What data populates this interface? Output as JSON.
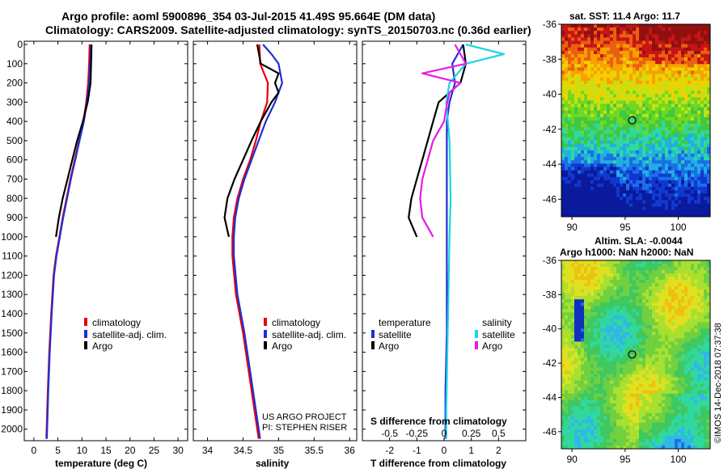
{
  "header": {
    "line1": "Argo profile: aoml 5900896_354 03-Jul-2015 41.49S 95.664E (DM data)",
    "line2": "Climatology: CARS2009. Satellite-adjusted climatology: synTS_20150703.nc (0.36d earlier)"
  },
  "colors": {
    "climatology": "#e8000b",
    "satellite": "#1f2fd6",
    "argo": "#000000",
    "sat_salinity": "#16d6e8",
    "argo_salinity": "#e81ae8",
    "ocean_low": "#0a1a9c",
    "ocean_high": "#c81414"
  },
  "depth_axis": {
    "ticks": [
      "0",
      "100",
      "200",
      "300",
      "400",
      "500",
      "600",
      "700",
      "800",
      "900",
      "1000",
      "1100",
      "1200",
      "1300",
      "1400",
      "1500",
      "1600",
      "1700",
      "1800",
      "1900",
      "2000"
    ],
    "ylim": [
      0,
      2060
    ]
  },
  "chart_data": [
    {
      "type": "line",
      "id": "temperature",
      "xlabel": "temperature (deg C)",
      "xlim": [
        -2,
        32
      ],
      "xticks": [
        "0",
        "5",
        "10",
        "15",
        "20",
        "25",
        "30"
      ],
      "legend": [
        "climatology",
        "satellite-adj. clim.",
        "Argo"
      ],
      "series": [
        {
          "name": "climatology",
          "depth": [
            0,
            100,
            200,
            300,
            400,
            500,
            600,
            700,
            800,
            900,
            1000,
            1100,
            1200,
            1400,
            1600,
            1800,
            2050
          ],
          "values": [
            11.6,
            11.5,
            11.3,
            10.9,
            10.3,
            9.4,
            8.5,
            7.6,
            6.8,
            6.0,
            5.3,
            4.6,
            4.1,
            3.6,
            3.2,
            2.9,
            2.6
          ]
        },
        {
          "name": "satellite-adj. clim.",
          "depth": [
            0,
            100,
            200,
            300,
            400,
            500,
            600,
            700,
            800,
            900,
            1000,
            1100,
            1200,
            1400,
            1600,
            1800,
            2050
          ],
          "values": [
            11.9,
            11.7,
            11.5,
            11.0,
            10.4,
            9.5,
            8.6,
            7.7,
            6.9,
            6.1,
            5.4,
            4.7,
            4.2,
            3.7,
            3.3,
            3.0,
            2.7
          ]
        },
        {
          "name": "Argo",
          "depth": [
            0,
            100,
            200,
            300,
            400,
            500,
            600,
            700,
            800,
            900,
            1000
          ],
          "values": [
            12.0,
            11.9,
            11.8,
            11.2,
            10.2,
            9.0,
            8.0,
            7.0,
            6.0,
            5.2,
            4.6
          ]
        }
      ]
    },
    {
      "type": "line",
      "id": "salinity",
      "xlabel": "salinity",
      "xlim": [
        33.8,
        36.1
      ],
      "xticks": [
        "34",
        "34.5",
        "35",
        "35.5",
        "36"
      ],
      "legend": [
        "climatology",
        "satellite-adj. clim.",
        "Argo"
      ],
      "series": [
        {
          "name": "climatology",
          "depth": [
            0,
            100,
            200,
            300,
            400,
            500,
            600,
            700,
            800,
            900,
            1000,
            1100,
            1300,
            1500,
            1700,
            1900,
            2050
          ],
          "values": [
            34.73,
            34.74,
            34.85,
            34.84,
            34.75,
            34.68,
            34.6,
            34.5,
            34.42,
            34.37,
            34.35,
            34.35,
            34.4,
            34.5,
            34.58,
            34.66,
            34.72
          ]
        },
        {
          "name": "satellite-adj. clim.",
          "depth": [
            0,
            50,
            100,
            200,
            300,
            400,
            500,
            600,
            700,
            800,
            900,
            1000,
            1100,
            1300,
            1500,
            1700,
            1900,
            2050
          ],
          "values": [
            34.78,
            34.9,
            35.0,
            35.05,
            34.95,
            34.82,
            34.72,
            34.62,
            34.52,
            34.44,
            34.39,
            34.37,
            34.37,
            34.42,
            34.52,
            34.6,
            34.68,
            34.74
          ]
        },
        {
          "name": "Argo",
          "depth": [
            0,
            100,
            150,
            200,
            250,
            300,
            400,
            500,
            600,
            700,
            800,
            900,
            1000
          ],
          "values": [
            34.7,
            34.75,
            35.0,
            34.95,
            35.0,
            34.9,
            34.75,
            34.62,
            34.5,
            34.38,
            34.28,
            34.24,
            34.3
          ]
        }
      ],
      "credit": [
        "US ARGO PROJECT",
        "PI: STEPHEN RISER"
      ]
    },
    {
      "type": "line",
      "id": "differences",
      "xlabel": "T difference from climatology",
      "xlim": [
        -3,
        3
      ],
      "xticks": [
        "-2",
        "-1",
        "0",
        "1",
        "2"
      ],
      "top_label": "S difference from climatology",
      "top_ticks": [
        "-0.5",
        "-0.25",
        "0",
        "0.25",
        "0.5"
      ],
      "legend_left_title": "temperature",
      "legend_right_title": "salinity",
      "legend_left": [
        "satellite",
        "Argo"
      ],
      "legend_right": [
        "satellite",
        "Argo"
      ],
      "series": [
        {
          "name": "T satellite",
          "depth": [
            0,
            100,
            200,
            300,
            400,
            600,
            800,
            1000,
            1200,
            1500,
            1800,
            2050
          ],
          "values": [
            0.7,
            0.3,
            0.4,
            0.2,
            0.1,
            0.1,
            0.1,
            0.1,
            0.1,
            0.1,
            0.05,
            0.05
          ]
        },
        {
          "name": "T Argo",
          "depth": [
            0,
            100,
            200,
            300,
            400,
            500,
            600,
            700,
            800,
            900,
            1000
          ],
          "values": [
            0.7,
            0.8,
            0.6,
            -0.2,
            -0.4,
            -0.6,
            -0.8,
            -1.0,
            -1.2,
            -1.3,
            -1.0
          ]
        },
        {
          "name": "S satellite",
          "depth": [
            0,
            50,
            100,
            200,
            300,
            500,
            800,
            1000,
            1300,
            1600,
            1900,
            2050
          ],
          "values": [
            0.2,
            0.55,
            0.2,
            0.05,
            0.02,
            0.05,
            0.06,
            0.05,
            0.04,
            0.03,
            0.02,
            0.02
          ]
        },
        {
          "name": "S Argo",
          "depth": [
            0,
            100,
            150,
            200,
            250,
            300,
            400,
            500,
            600,
            700,
            800,
            900,
            1000
          ],
          "values": [
            0.1,
            0.2,
            -0.2,
            0.15,
            0.05,
            0.03,
            0.0,
            -0.1,
            -0.15,
            -0.2,
            -0.22,
            -0.2,
            -0.1
          ]
        }
      ]
    },
    {
      "type": "heatmap",
      "id": "sst_map",
      "title": "sat. SST: 11.4 Argo: 11.7",
      "xticks": [
        "90",
        "95",
        "100"
      ],
      "yticks": [
        "-36",
        "-38",
        "-40",
        "-42",
        "-44",
        "-46"
      ],
      "lon": [
        89,
        103
      ],
      "lat": [
        -47,
        -36
      ],
      "argo_position": {
        "lon": 95.664,
        "lat": -41.49
      }
    },
    {
      "type": "heatmap",
      "id": "sla_map",
      "title1": "Altim. SLA: -0.0044",
      "title2": "Argo h1000: NaN h2000: NaN",
      "xticks": [
        "90",
        "95",
        "100"
      ],
      "yticks": [
        "-36",
        "-38",
        "-40",
        "-42",
        "-44",
        "-46"
      ],
      "lon": [
        89,
        103
      ],
      "lat": [
        -47,
        -36
      ],
      "argo_position": {
        "lon": 95.664,
        "lat": -41.49
      }
    }
  ],
  "footer": {
    "credit": "©IMOS 14-Dec-2018 07:37:38"
  }
}
